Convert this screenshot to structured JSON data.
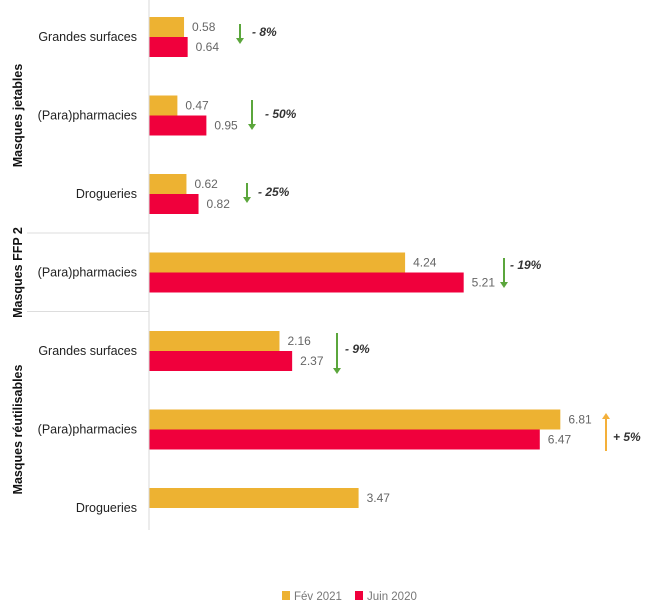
{
  "chart_data": {
    "type": "bar",
    "orientation": "horizontal",
    "title": "",
    "xlabel": "",
    "ylabel": "",
    "xlim": [
      0,
      7
    ],
    "grid": false,
    "legend_position": "bottom",
    "series": [
      {
        "name": "Fév 2021",
        "color": "#EDB232"
      },
      {
        "name": "Juin 2020",
        "color": "#F0003C"
      }
    ],
    "groups": [
      {
        "label": "Masques jetables",
        "rows": [
          {
            "category": "Grandes surfaces",
            "values": [
              0.58,
              0.64
            ],
            "labels": [
              "0.58",
              "0.64"
            ],
            "change": "- 8%",
            "direction": "down"
          },
          {
            "category": "(Para)pharmacies",
            "values": [
              0.47,
              0.95
            ],
            "labels": [
              "0.47",
              "0.95"
            ],
            "change": "- 50%",
            "direction": "down"
          },
          {
            "category": "Drogueries",
            "values": [
              0.62,
              0.82
            ],
            "labels": [
              "0.62",
              "0.82"
            ],
            "change": "- 25%",
            "direction": "down"
          }
        ]
      },
      {
        "label": "Masques FFP 2",
        "rows": [
          {
            "category": "(Para)pharmacies",
            "values": [
              4.24,
              5.21
            ],
            "labels": [
              "4.24",
              "5.21"
            ],
            "change": "- 19%",
            "direction": "down"
          }
        ]
      },
      {
        "label": "Masques réutilisables",
        "rows": [
          {
            "category": "Grandes surfaces",
            "values": [
              2.16,
              2.37
            ],
            "labels": [
              "2.16",
              "2.37"
            ],
            "change": "- 9%",
            "direction": "down"
          },
          {
            "category": "(Para)pharmacies",
            "values": [
              6.81,
              6.47
            ],
            "labels": [
              "6.81",
              "6.47"
            ],
            "change": "+ 5%",
            "direction": "up"
          },
          {
            "category": "Drogueries",
            "values": [
              3.47,
              null
            ],
            "labels": [
              "3.47",
              null
            ],
            "change": null,
            "direction": null
          }
        ]
      }
    ],
    "arrow_colors": {
      "down": "#5BA63C",
      "up": "#F4B03A"
    }
  }
}
